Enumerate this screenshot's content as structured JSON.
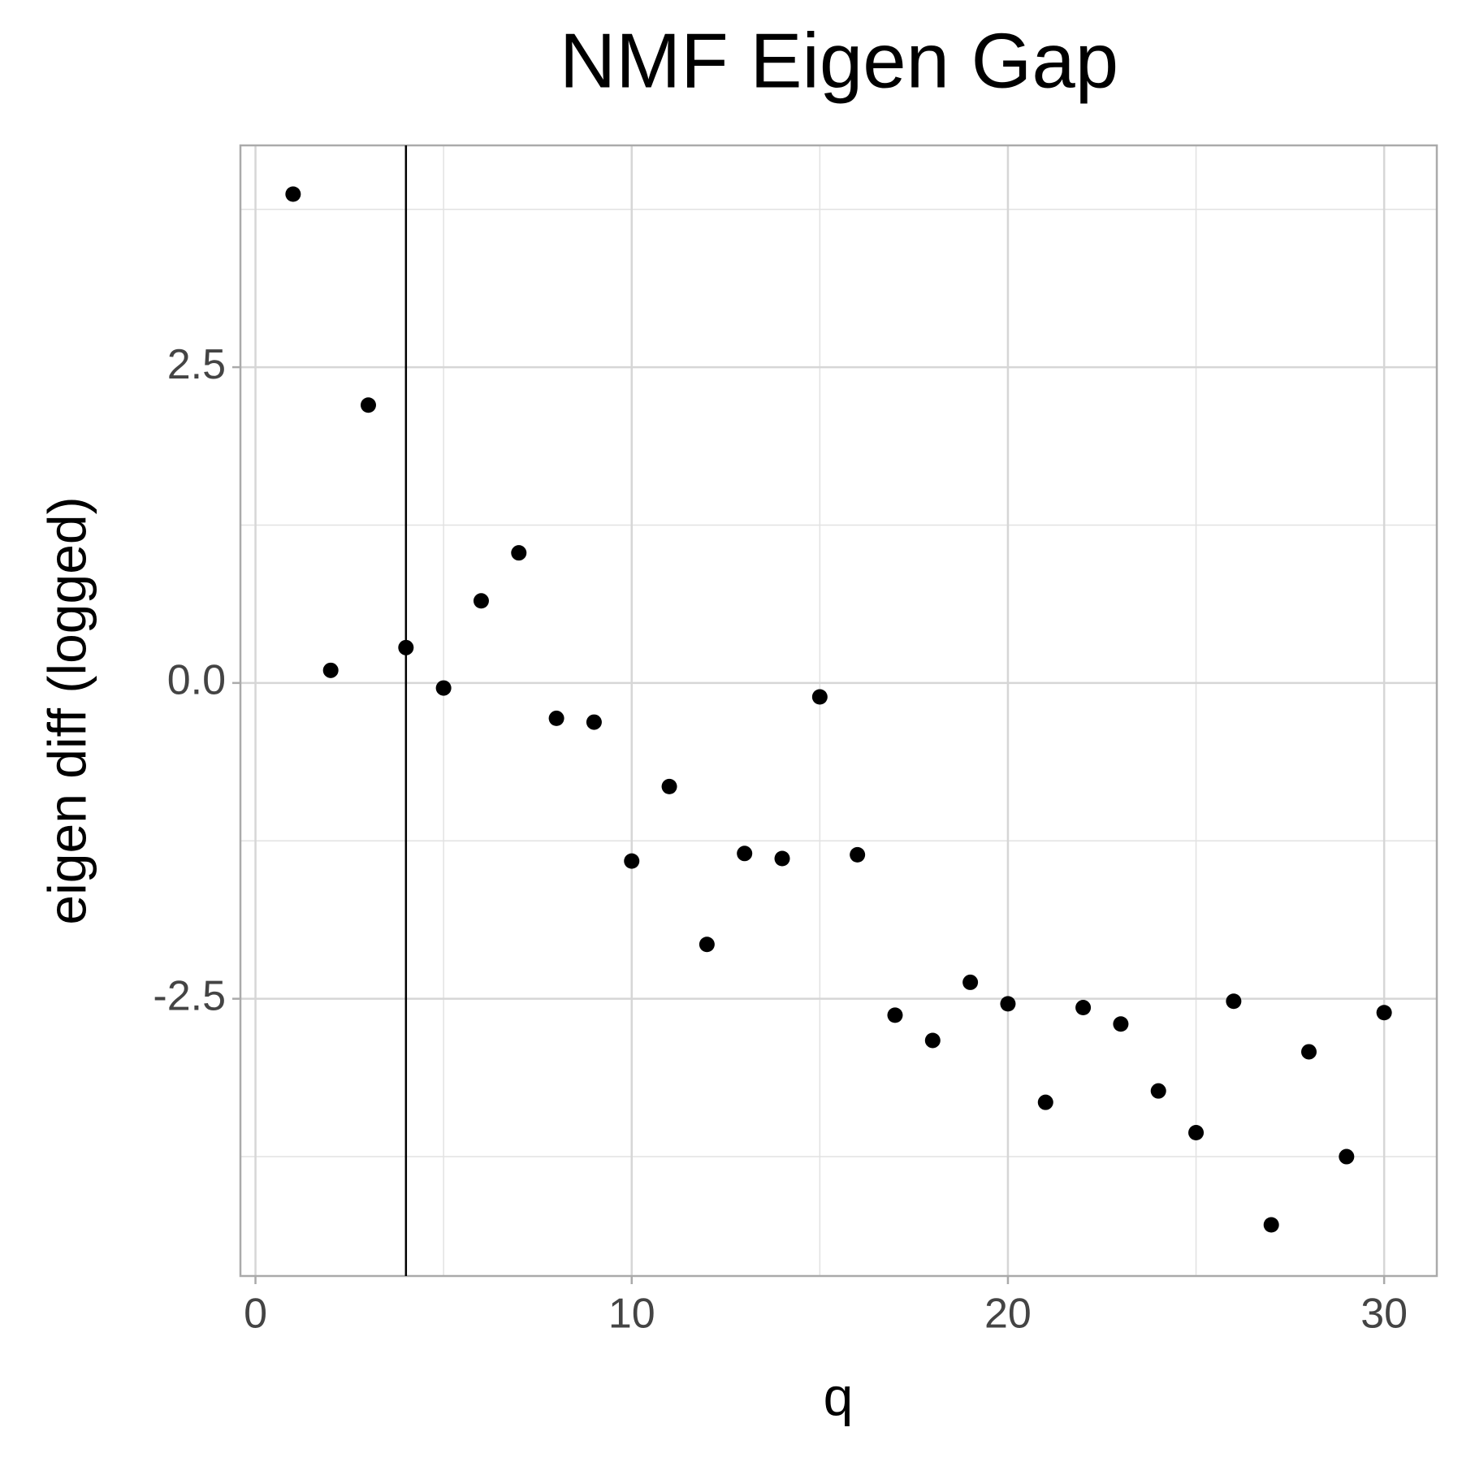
{
  "chart_data": {
    "type": "scatter",
    "title": "NMF Eigen Gap",
    "x_label": "q",
    "y_label": "eigen diff (logged)",
    "x": [
      1,
      2,
      3,
      4,
      5,
      6,
      7,
      8,
      9,
      10,
      11,
      12,
      13,
      14,
      15,
      16,
      17,
      18,
      19,
      20,
      21,
      22,
      23,
      24,
      25,
      26,
      27,
      28,
      29,
      30
    ],
    "series": [
      {
        "color": "#000000",
        "values": [
          3.87,
          0.1,
          2.2,
          0.28,
          -0.04,
          0.65,
          1.03,
          -0.28,
          -0.31,
          -1.41,
          -0.82,
          -2.07,
          -1.35,
          -1.39,
          -0.11,
          -1.36,
          -2.63,
          -2.83,
          -2.37,
          -2.54,
          -3.32,
          -2.57,
          -2.7,
          -3.23,
          -3.56,
          -2.52,
          -4.29,
          -2.92,
          -3.75,
          -2.61
        ]
      }
    ],
    "xlim": [
      -0.4,
      31.4
    ],
    "ylim": [
      -4.695,
      4.256
    ],
    "xticks": [
      0,
      10,
      20,
      30
    ],
    "yticks": [
      -2.5,
      0.0,
      2.5
    ],
    "x_minor_grid": [
      5,
      15,
      25
    ],
    "y_minor_grid": [
      -3.75,
      -1.25,
      1.25,
      3.75
    ],
    "vline": 4,
    "vline_color": "#000000",
    "grid": true
  }
}
